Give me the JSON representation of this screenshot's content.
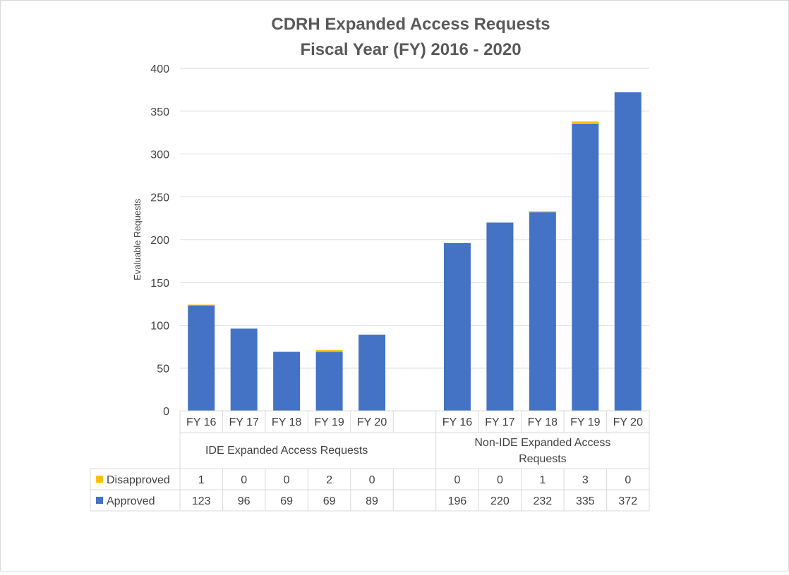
{
  "chart_data": {
    "type": "bar",
    "stacked": true,
    "title": [
      "CDRH Expanded Access Requests",
      "Fiscal Year (FY) 2016 - 2020"
    ],
    "ylabel": "Evaluable Requests",
    "ylim": [
      0,
      400
    ],
    "yticks": [
      0,
      50,
      100,
      150,
      200,
      250,
      300,
      350,
      400
    ],
    "grid": true,
    "legend": "data-table",
    "groups": [
      {
        "label": "IDE Expanded Access Requests",
        "categories": [
          "FY 16",
          "FY 17",
          "FY 18",
          "FY 19",
          "FY 20"
        ]
      },
      {
        "label": "Non-IDE Expanded Access Requests",
        "categories": [
          "FY 16",
          "FY 17",
          "FY 18",
          "FY 19",
          "FY 20"
        ]
      }
    ],
    "series": [
      {
        "name": "Approved",
        "color": "#4472C4",
        "values": [
          [
            123,
            96,
            69,
            69,
            89
          ],
          [
            196,
            220,
            232,
            335,
            372
          ]
        ]
      },
      {
        "name": "Disapproved",
        "color": "#FFC000",
        "values": [
          [
            1,
            0,
            0,
            2,
            0
          ],
          [
            0,
            0,
            1,
            3,
            0
          ]
        ]
      }
    ]
  }
}
